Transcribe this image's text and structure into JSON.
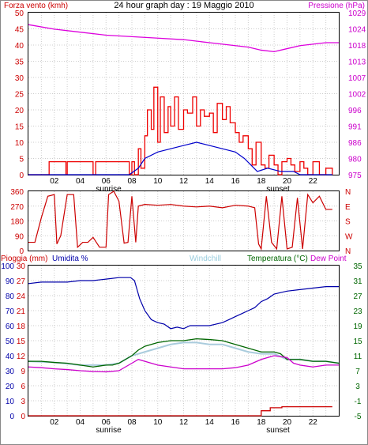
{
  "title": "24 hour graph day : 19 Maggio 2010",
  "hour_labels": [
    "02",
    "04",
    "06",
    "08",
    "10",
    "12",
    "14",
    "16",
    "18",
    "20",
    "22"
  ],
  "sunrise_label": "sunrise",
  "sunset_label": "sunset",
  "colors": {
    "wind": "#ee0000",
    "wind_avg": "#0000cc",
    "pressure": "#dd00dd",
    "direction": "#cc0000",
    "humidity": "#0000aa",
    "temperature": "#006600",
    "windchill": "#aaccdd",
    "dewpoint": "#cc00cc",
    "rain": "#cc0000"
  },
  "chart_data": [
    {
      "type": "line",
      "name": "wind-pressure",
      "left_axis_label": "Forza vento (kmh)",
      "right_axis_label": "Pressione (hPa)",
      "left_ticks": [
        0,
        5,
        10,
        15,
        20,
        25,
        30,
        35,
        40,
        45,
        50
      ],
      "right_ticks": [
        975,
        980,
        986,
        991,
        996,
        1002,
        1007,
        1013,
        1018,
        1024,
        1029
      ],
      "ylim_left": [
        0,
        50
      ],
      "ylim_right": [
        975,
        1029
      ],
      "xlim": [
        0,
        24
      ],
      "pressure": {
        "x": [
          0,
          2,
          4,
          6,
          8,
          10,
          12,
          14,
          16,
          17,
          18,
          19,
          20,
          21,
          22,
          23,
          24
        ],
        "y": [
          1025,
          1023.5,
          1022.5,
          1021.5,
          1021,
          1020.5,
          1020,
          1019,
          1018,
          1017.5,
          1016.5,
          1016,
          1017,
          1018,
          1018.5,
          1019,
          1019
        ]
      },
      "wind_avg": {
        "x": [
          0,
          7.8,
          8.5,
          9,
          10,
          11,
          12,
          13,
          14,
          15,
          16,
          16.7,
          17.2,
          17.7,
          18.5,
          19.5,
          20.5,
          21,
          22,
          23.5
        ],
        "y": [
          0,
          0,
          2,
          5,
          7,
          8,
          9,
          10,
          9,
          8,
          7,
          5,
          3,
          1,
          2,
          1,
          1,
          0,
          0,
          0
        ]
      },
      "wind_gust": {
        "x": [
          0,
          1.5,
          1.6,
          2.8,
          2.9,
          3.0,
          4.6,
          5.0,
          5.2,
          7.8,
          8.0,
          8.2,
          8.5,
          8.7,
          9.0,
          9.2,
          9.5,
          9.7,
          10.0,
          10.2,
          10.5,
          10.8,
          11.0,
          11.3,
          11.6,
          12.0,
          12.3,
          12.7,
          13.0,
          13.3,
          13.6,
          14.0,
          14.3,
          14.6,
          15.0,
          15.3,
          15.6,
          16.0,
          16.3,
          16.6,
          17.0,
          17.3,
          17.6,
          18.0,
          18.3,
          18.6,
          19.0,
          19.3,
          19.6,
          20.0,
          20.3,
          20.6,
          21.0,
          21.3,
          21.6,
          22.0,
          22.5,
          23.0,
          23.5
        ],
        "y": [
          0,
          0,
          4,
          4,
          0,
          4,
          4,
          0,
          4,
          0,
          4,
          0,
          8,
          2,
          12,
          20,
          14,
          27,
          10,
          24,
          13,
          21,
          15,
          24,
          14,
          20,
          19,
          24,
          15,
          20,
          18,
          19,
          13,
          22,
          17,
          21,
          16,
          13,
          10,
          12,
          8,
          3,
          10,
          3,
          2,
          6,
          3,
          0,
          4,
          5,
          3,
          1,
          4,
          2,
          0,
          4,
          0,
          2,
          0
        ]
      }
    },
    {
      "type": "line",
      "name": "wind-direction",
      "left_ticks": [
        0,
        90,
        180,
        270,
        360
      ],
      "right_ticks": [
        "N",
        "E",
        "S",
        "W",
        "N"
      ],
      "ylim": [
        0,
        360
      ],
      "xlim": [
        0,
        24
      ],
      "direction": {
        "x": [
          0,
          0.5,
          1.0,
          1.5,
          2.0,
          2.2,
          2.5,
          3.0,
          3.5,
          3.8,
          4.2,
          4.6,
          5.0,
          5.5,
          6.0,
          6.2,
          6.6,
          7.0,
          7.4,
          7.7,
          8.0,
          8.3,
          8.5,
          9.0,
          10,
          11,
          12,
          13,
          14,
          15,
          16,
          17,
          17.5,
          17.8,
          18.0,
          18.4,
          18.8,
          19.2,
          19.6,
          20.0,
          20.4,
          20.8,
          21.2,
          21.6,
          22.0,
          22.5,
          23.0,
          23.5
        ],
        "y": [
          50,
          50,
          200,
          330,
          340,
          40,
          90,
          340,
          340,
          20,
          50,
          50,
          80,
          20,
          20,
          340,
          360,
          300,
          45,
          50,
          330,
          50,
          270,
          280,
          275,
          280,
          270,
          265,
          270,
          260,
          275,
          270,
          260,
          40,
          10,
          330,
          50,
          10,
          330,
          10,
          20,
          320,
          10,
          340,
          290,
          330,
          250,
          250
        ]
      }
    },
    {
      "type": "line",
      "name": "humidity-temperature",
      "labels": {
        "rain": "Pioggia (mm)",
        "humidity": "Umidita %",
        "windchill": "Windchill",
        "temperature": "Temperatura (°C)",
        "dewpoint": "Dew Point"
      },
      "humidity_ticks": [
        0,
        10,
        20,
        30,
        40,
        50,
        60,
        70,
        80,
        90,
        100
      ],
      "rain_ticks": [
        0,
        3,
        6,
        9,
        12,
        15,
        18,
        21,
        24,
        27,
        30
      ],
      "temp_ticks": [
        -5,
        -1,
        3,
        7,
        11,
        15,
        19,
        23,
        27,
        31,
        35
      ],
      "ylim_humidity": [
        0,
        100
      ],
      "ylim_temp": [
        -5,
        35
      ],
      "xlim": [
        0,
        24
      ],
      "humidity": {
        "x": [
          0,
          1,
          2,
          3,
          4,
          5,
          6,
          7,
          7.5,
          7.9,
          8.2,
          8.6,
          9.0,
          9.5,
          10,
          10.5,
          11,
          11.5,
          12,
          12.5,
          13,
          13.5,
          14,
          14.5,
          15,
          15.5,
          16,
          16.5,
          17,
          17.5,
          18,
          18.5,
          19,
          19.5,
          20,
          21,
          22,
          23,
          24
        ],
        "y": [
          88,
          89,
          89,
          89,
          90,
          90,
          91,
          92,
          92,
          92,
          90,
          78,
          70,
          64,
          62,
          61,
          58,
          59,
          58,
          60,
          60,
          60,
          60,
          61,
          62,
          64,
          66,
          68,
          70,
          72,
          76,
          78,
          81,
          82,
          83,
          84,
          85,
          86,
          86
        ]
      },
      "temperature": {
        "x": [
          0,
          1,
          2,
          3,
          4,
          5,
          6,
          6.5,
          7,
          7.5,
          8,
          8.5,
          9,
          10,
          11,
          12,
          13,
          14,
          15,
          16,
          17,
          18,
          19,
          19.5,
          20,
          21,
          22,
          23,
          24
        ],
        "y": [
          9.5,
          9.5,
          9.2,
          9,
          8.5,
          8,
          8.5,
          8.5,
          9,
          10,
          11,
          12.5,
          13.5,
          14.5,
          15,
          15,
          15.5,
          15.3,
          15,
          14,
          13,
          12,
          12,
          11.5,
          10,
          10,
          9.5,
          9.5,
          9
        ]
      },
      "windchill": {
        "x": [
          0,
          2,
          4,
          6,
          7,
          8,
          9,
          10,
          11,
          12,
          13,
          14,
          15,
          16,
          17,
          18,
          19,
          20,
          21,
          22,
          23,
          24
        ],
        "y": [
          9.5,
          9.2,
          8.5,
          8.5,
          9,
          11,
          12,
          13,
          14,
          14.5,
          14.5,
          14,
          14,
          13,
          12,
          11.5,
          11.5,
          10,
          10,
          9.5,
          9.5,
          9
        ]
      },
      "dewpoint": {
        "x": [
          0,
          1,
          2,
          3,
          4,
          5,
          6,
          7,
          7.5,
          8,
          8.5,
          9,
          10,
          11,
          12,
          13,
          14,
          15,
          16,
          17,
          18,
          19,
          20,
          20.5,
          21,
          22,
          23,
          24
        ],
        "y": [
          8,
          7.8,
          7.5,
          7.3,
          7,
          6.8,
          6.7,
          7,
          8,
          9,
          10,
          9.5,
          8.5,
          8,
          7.5,
          7.5,
          7.5,
          7.5,
          7.8,
          8.5,
          10,
          11,
          10.5,
          9,
          8.5,
          8,
          8.5,
          8.5
        ]
      },
      "rain": {
        "x": [
          0,
          17.5,
          17.9,
          18.0,
          18.6,
          18.7,
          19.5,
          19.6,
          23.5
        ],
        "y": [
          0,
          0,
          0,
          1,
          1,
          1.6,
          1.6,
          1.8,
          1.8
        ]
      }
    }
  ]
}
